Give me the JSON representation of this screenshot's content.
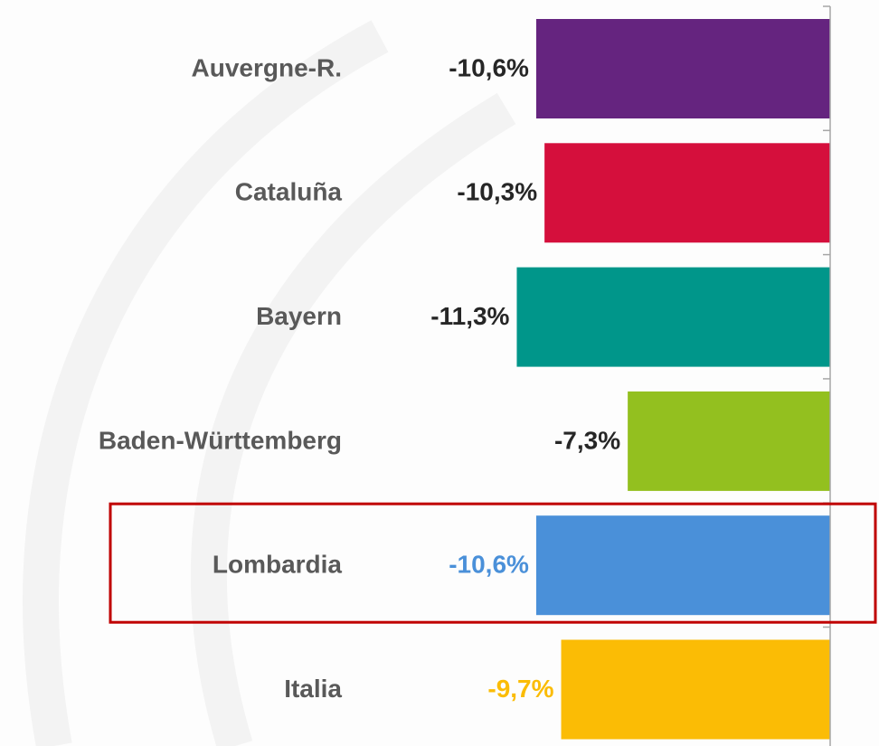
{
  "chart_data": {
    "type": "barh",
    "categories": [
      "Auvergne-R.",
      "Cataluña",
      "Bayern",
      "Baden-Württemberg",
      "Lombardia",
      "Italia"
    ],
    "values": [
      -10.6,
      -10.3,
      -11.3,
      -7.3,
      -10.6,
      -9.7
    ],
    "value_labels": [
      "-10,6%",
      "-10,3%",
      "-11,3%",
      "-7,3%",
      "-10,6%",
      "-9,7%"
    ],
    "colors": [
      "#65247f",
      "#d50f3c",
      "#00968a",
      "#93c01f",
      "#4a90d9",
      "#fbbc05"
    ],
    "value_label_colors": [
      "#262626",
      "#262626",
      "#262626",
      "#262626",
      "#4a90d9",
      "#fbbc05"
    ],
    "highlight": 4,
    "xlim": [
      -12,
      0
    ]
  }
}
